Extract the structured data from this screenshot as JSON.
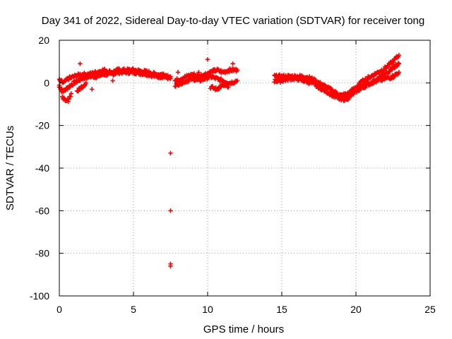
{
  "chart_data": {
    "type": "scatter",
    "title": "Day 341 of 2022, Sidereal Day-to-day VTEC variation (SDTVAR) for receiver tong",
    "xlabel": "GPS time / hours",
    "ylabel": "SDTVAR / TECUs",
    "xlim": [
      0,
      25
    ],
    "ylim": [
      -100,
      20
    ],
    "xticks": [
      0,
      5,
      10,
      15,
      20,
      25
    ],
    "yticks": [
      -100,
      -80,
      -60,
      -40,
      -20,
      0,
      20
    ],
    "xtick_labels": [
      "0",
      "5",
      "10",
      "15",
      "20",
      "25"
    ],
    "ytick_labels": [
      "-100",
      "-80",
      "-60",
      "-40",
      "-20",
      "0",
      "20"
    ],
    "grid": true,
    "marker": "plus",
    "color": "#ff0000",
    "series": [
      {
        "name": "SDTVAR",
        "segments": [
          {
            "x": [
              0.0,
              0.3,
              0.6,
              1.0,
              1.5,
              2.0,
              2.5,
              3.0,
              3.5,
              4.0,
              5.0,
              6.0,
              6.5,
              7.0,
              7.5
            ],
            "y": [
              -2,
              -4,
              -2,
              0,
              2,
              3,
              3,
              4,
              4,
              5,
              5,
              4,
              3,
              3,
              2
            ]
          },
          {
            "x": [
              0.0,
              0.3,
              0.6,
              1.0,
              1.5,
              2.0,
              2.5,
              3.0,
              3.5,
              4.0,
              5.0,
              6.0,
              6.5,
              7.0,
              7.5
            ],
            "y": [
              1,
              0,
              2,
              3,
              4,
              4,
              5,
              6,
              5,
              6,
              6,
              5,
              4,
              4,
              3
            ]
          },
          {
            "x": [
              0.0,
              0.2,
              0.4,
              0.6,
              0.8
            ],
            "y": [
              -1,
              -6,
              -9,
              -8,
              -5
            ]
          },
          {
            "x": [
              1.2,
              1.5,
              1.8
            ],
            "y": [
              -4,
              -2,
              0
            ]
          },
          {
            "x": [
              7.8,
              8.2,
              8.6,
              9.0,
              9.4,
              9.8,
              10.2,
              10.6,
              11.0,
              11.5,
              12.0
            ],
            "y": [
              1,
              2,
              3,
              4,
              3,
              4,
              5,
              6,
              5,
              6,
              6
            ]
          },
          {
            "x": [
              7.8,
              8.2,
              8.6,
              9.0,
              9.4,
              9.8,
              10.2,
              10.6,
              11.0,
              11.5,
              12.0
            ],
            "y": [
              -1,
              0,
              1,
              2,
              1,
              2,
              3,
              2,
              1,
              0,
              1
            ]
          },
          {
            "x": [
              10.2,
              10.6,
              11.0,
              11.4
            ],
            "y": [
              -2,
              -3,
              -1,
              -2
            ]
          },
          {
            "x": [
              14.5,
              15.0,
              15.5,
              16.0,
              16.5,
              17.0,
              17.5,
              18.0,
              18.5,
              19.0,
              19.5,
              20.0,
              20.5,
              21.0,
              21.5,
              22.0,
              22.5,
              22.9
            ],
            "y": [
              3,
              3,
              3,
              3,
              3,
              2,
              0,
              -2,
              -4,
              -6,
              -5,
              -2,
              1,
              3,
              5,
              7,
              10,
              13
            ]
          },
          {
            "x": [
              14.5,
              15.0,
              15.5,
              16.0,
              16.5,
              17.0,
              17.5,
              18.0,
              18.5,
              19.0,
              19.5,
              20.0,
              20.5,
              21.0,
              21.5,
              22.0,
              22.5,
              22.9
            ],
            "y": [
              1,
              1,
              2,
              2,
              1,
              0,
              -2,
              -4,
              -6,
              -8,
              -7,
              -4,
              -2,
              0,
              2,
              4,
              7,
              9
            ]
          },
          {
            "x": [
              19.5,
              20.0,
              20.5,
              21.0,
              21.5,
              22.0,
              22.5,
              22.9
            ],
            "y": [
              -6,
              -3,
              -1,
              0,
              1,
              2,
              3,
              5
            ]
          }
        ],
        "isolated_points": {
          "x": [
            1.4,
            2.2,
            3.6,
            9.4,
            10.0,
            11.7,
            7.5,
            7.5,
            7.5,
            7.5,
            8.0
          ],
          "y": [
            9,
            -3,
            1,
            5,
            11,
            9,
            -33,
            -60,
            -85,
            -86,
            5
          ]
        }
      }
    ]
  }
}
